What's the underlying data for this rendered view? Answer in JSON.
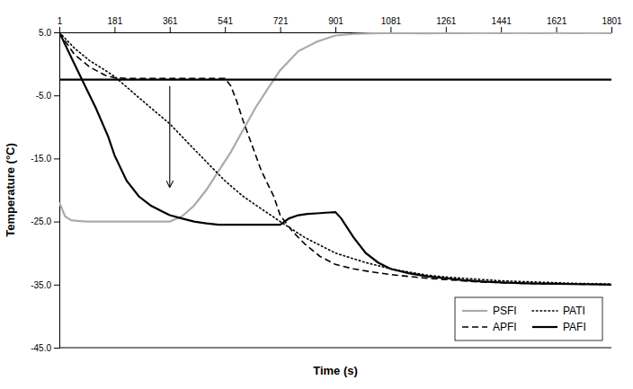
{
  "chart_data": {
    "type": "line",
    "title": "",
    "xlabel": "Time (s)",
    "ylabel": "Temperature (°C)",
    "xlim": [
      1,
      1801
    ],
    "ylim": [
      -45.0,
      5.0
    ],
    "xticks": [
      1,
      181,
      361,
      541,
      721,
      901,
      1081,
      1261,
      1441,
      1621,
      1801
    ],
    "yticks": [
      {
        "value": 5.0,
        "label": "5.0"
      },
      {
        "value": -5.0,
        "label": "-5.0"
      },
      {
        "value": -15.0,
        "label": "-15.0"
      },
      {
        "value": -25.0,
        "label": "-25.0"
      },
      {
        "value": -35.0,
        "label": "-35.0"
      },
      {
        "value": -45.0,
        "label": "-45.0"
      }
    ],
    "grid": false,
    "legend": "lower right",
    "hlines": [
      -2.5
    ],
    "arrows": [
      {
        "x": 361,
        "y_start": -3.5,
        "y_end": -19.5
      }
    ],
    "series": [
      {
        "name": "PSFI",
        "color": "#aaaaaa",
        "line_style": "solid",
        "x": [
          1,
          20,
          40,
          60,
          90,
          120,
          150,
          181,
          240,
          300,
          361,
          400,
          440,
          480,
          520,
          560,
          600,
          640,
          680,
          721,
          780,
          840,
          901,
          960,
          1020,
          1081,
          1140,
          1200,
          1261,
          1320,
          1380,
          1441,
          1500,
          1560,
          1621,
          1680,
          1740,
          1801
        ],
        "values": [
          -22.0,
          -24.2,
          -24.8,
          -24.9,
          -25.0,
          -25.0,
          -25.0,
          -25.0,
          -25.0,
          -25.0,
          -25.0,
          -24.2,
          -22.5,
          -20.0,
          -17.0,
          -14.0,
          -10.5,
          -7.0,
          -4.0,
          -1.0,
          2.0,
          3.5,
          4.5,
          4.75,
          4.85,
          4.9,
          4.88,
          4.85,
          4.9,
          4.87,
          4.9,
          4.87,
          4.9,
          4.87,
          4.9,
          4.87,
          4.9,
          4.87
        ]
      },
      {
        "name": "PATI",
        "color": "#000000",
        "line_style": "dotted",
        "x": [
          1,
          50,
          100,
          150,
          181,
          240,
          300,
          361,
          420,
          480,
          540,
          600,
          660,
          721,
          800,
          901,
          1000,
          1081,
          1140,
          1200,
          1261,
          1320,
          1380,
          1441,
          1500,
          1560,
          1621,
          1680,
          1740,
          1801
        ],
        "values": [
          5.0,
          2.5,
          0.5,
          -1.0,
          -2.0,
          -4.5,
          -7.0,
          -9.5,
          -12.5,
          -15.5,
          -18.5,
          -21.0,
          -23.0,
          -25.0,
          -27.5,
          -30.0,
          -31.5,
          -32.5,
          -33.0,
          -33.5,
          -33.8,
          -34.0,
          -34.2,
          -34.4,
          -34.5,
          -34.6,
          -34.7,
          -34.8,
          -34.85,
          -34.9
        ]
      },
      {
        "name": "APFI",
        "color": "#000000",
        "line_style": "dashed",
        "x": [
          1,
          50,
          100,
          150,
          181,
          220,
          260,
          300,
          361,
          400,
          440,
          480,
          520,
          541,
          560,
          580,
          600,
          630,
          660,
          700,
          721,
          760,
          800,
          850,
          901,
          960,
          1020,
          1081,
          1140,
          1200,
          1261,
          1320,
          1380,
          1441,
          1500,
          1560,
          1621,
          1680,
          1740,
          1801
        ],
        "values": [
          5.0,
          1.5,
          -0.5,
          -1.8,
          -2.2,
          -2.3,
          -2.3,
          -2.3,
          -2.3,
          -2.3,
          -2.3,
          -2.3,
          -2.3,
          -2.3,
          -3.5,
          -6.0,
          -9.0,
          -13.0,
          -17.0,
          -21.0,
          -24.0,
          -26.5,
          -28.5,
          -30.5,
          -31.8,
          -32.5,
          -33.0,
          -33.4,
          -33.7,
          -34.0,
          -34.2,
          -34.4,
          -34.6,
          -34.7,
          -34.8,
          -34.85,
          -34.9,
          -34.93,
          -34.96,
          -35.0
        ]
      },
      {
        "name": "PAFI",
        "color": "#000000",
        "line_style": "solid",
        "x": [
          1,
          40,
          80,
          120,
          160,
          181,
          220,
          260,
          300,
          340,
          361,
          400,
          440,
          480,
          520,
          560,
          600,
          640,
          680,
          721,
          750,
          780,
          810,
          840,
          870,
          901,
          920,
          940,
          960,
          1000,
          1040,
          1081,
          1140,
          1200,
          1261,
          1320,
          1380,
          1441,
          1500,
          1560,
          1621,
          1680,
          1740,
          1801
        ],
        "values": [
          5.0,
          1.0,
          -3.0,
          -7.0,
          -11.5,
          -14.5,
          -18.5,
          -21.0,
          -22.5,
          -23.5,
          -24.0,
          -24.5,
          -25.0,
          -25.3,
          -25.5,
          -25.5,
          -25.5,
          -25.5,
          -25.5,
          -25.5,
          -24.5,
          -24.0,
          -23.8,
          -23.7,
          -23.6,
          -23.5,
          -24.5,
          -26.0,
          -27.5,
          -30.0,
          -31.5,
          -32.5,
          -33.2,
          -33.7,
          -34.0,
          -34.3,
          -34.5,
          -34.65,
          -34.75,
          -34.82,
          -34.88,
          -34.92,
          -34.96,
          -35.0
        ]
      }
    ]
  }
}
